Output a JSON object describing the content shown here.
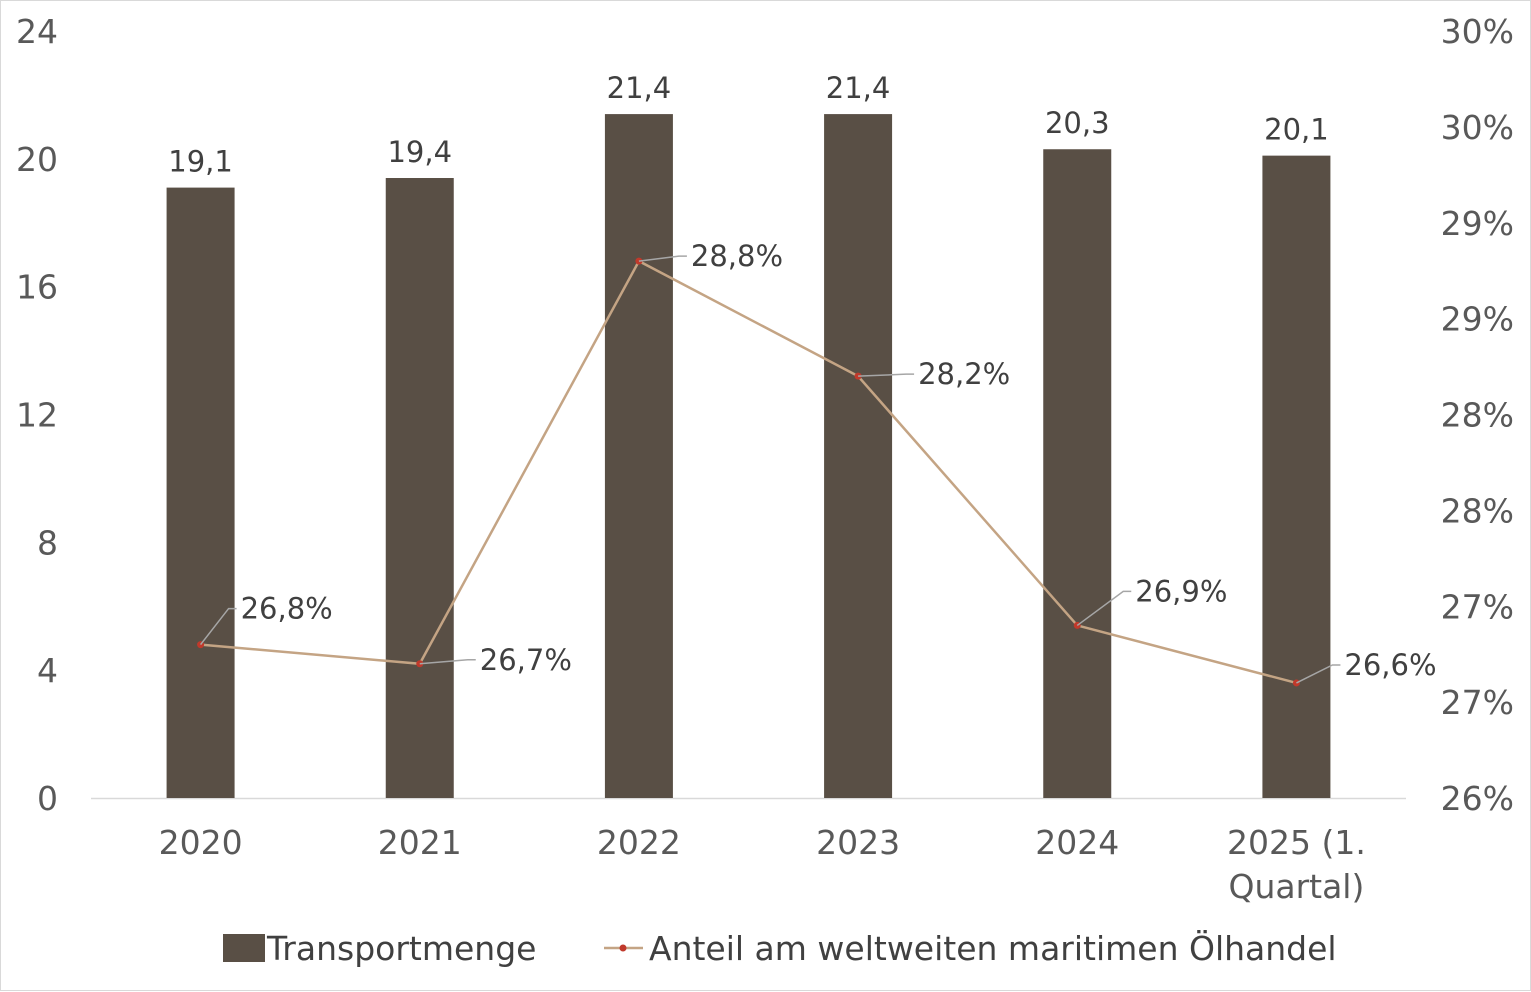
{
  "chart_data": {
    "type": "bar",
    "categories": [
      "2020",
      "2021",
      "2022",
      "2023",
      "2024",
      "2025 (1. Quartal)"
    ],
    "category_lines": [
      [
        "2020"
      ],
      [
        "2021"
      ],
      [
        "2022"
      ],
      [
        "2023"
      ],
      [
        "2024"
      ],
      [
        "2025 (1.",
        "Quartal)"
      ]
    ],
    "series": [
      {
        "name": "Transportmenge",
        "type": "bar",
        "axis": "left",
        "color": "#594f45",
        "values": [
          19.1,
          19.4,
          21.4,
          21.4,
          20.3,
          20.1
        ],
        "labels": [
          "19,1",
          "19,4",
          "21,4",
          "21,4",
          "20,3",
          "20,1"
        ]
      },
      {
        "name": "Anteil am weltweiten maritimen Ölhandel",
        "type": "line",
        "axis": "right",
        "color": "#c4a484",
        "marker_color": "#c0392b",
        "values": [
          26.8,
          26.7,
          28.8,
          28.2,
          26.9,
          26.6
        ],
        "labels": [
          "26,8%",
          "26,7%",
          "28,8%",
          "28,2%",
          "26,9%",
          "26,6%"
        ]
      }
    ],
    "y_left": {
      "ylim": [
        0,
        24
      ],
      "ticks": [
        0,
        4,
        8,
        12,
        16,
        20,
        24
      ],
      "tick_labels": [
        "0",
        "4",
        "8",
        "12",
        "16",
        "20",
        "24"
      ]
    },
    "y_right": {
      "ylim": [
        26,
        30
      ],
      "ticks": [
        26,
        26.5,
        27,
        27.5,
        28,
        28.5,
        29,
        29.5,
        30
      ],
      "tick_labels": [
        "26%",
        "27%",
        "27%",
        "28%",
        "28%",
        "29%",
        "29%",
        "30%",
        "30%"
      ]
    },
    "grid": false,
    "legend": "bottom"
  }
}
